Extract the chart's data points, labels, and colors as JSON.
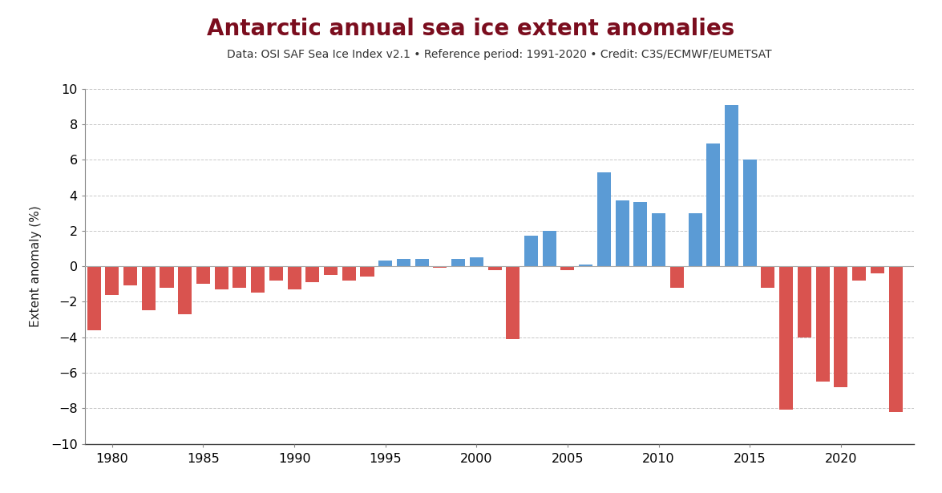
{
  "title": "Antarctic annual sea ice extent anomalies",
  "subtitle": "Data: OSI SAF Sea Ice Index v2.1 • Reference period: 1991-2020 • Credit: C3S/ECMWF/EUMETSAT",
  "ylabel": "Extent anomaly (%)",
  "xlim": [
    1978.5,
    2024.0
  ],
  "ylim": [
    -10,
    10
  ],
  "yticks": [
    -10,
    -8,
    -6,
    -4,
    -2,
    0,
    2,
    4,
    6,
    8,
    10
  ],
  "xticks": [
    1980,
    1985,
    1990,
    1995,
    2000,
    2005,
    2010,
    2015,
    2020
  ],
  "bar_color_positive": "#5b9bd5",
  "bar_color_negative": "#d9534f",
  "background_color": "#ffffff",
  "grid_color": "#c8c8c8",
  "title_color": "#7b0d1e",
  "subtitle_color": "#333333",
  "years": [
    1979,
    1980,
    1981,
    1982,
    1983,
    1984,
    1985,
    1986,
    1987,
    1988,
    1989,
    1990,
    1991,
    1992,
    1993,
    1994,
    1995,
    1996,
    1997,
    1998,
    1999,
    2000,
    2001,
    2002,
    2003,
    2004,
    2005,
    2006,
    2007,
    2008,
    2009,
    2010,
    2011,
    2012,
    2013,
    2014,
    2015,
    2016,
    2017,
    2018,
    2019,
    2020,
    2021,
    2022,
    2023
  ],
  "values": [
    -3.6,
    -1.6,
    -1.1,
    -2.5,
    -1.2,
    -2.7,
    -1.0,
    -1.3,
    -1.2,
    -1.5,
    -0.8,
    -1.3,
    -0.9,
    -0.5,
    -0.8,
    -0.6,
    0.3,
    0.4,
    0.4,
    -0.1,
    0.4,
    0.5,
    -0.2,
    -4.1,
    1.7,
    2.0,
    -0.2,
    0.1,
    5.3,
    3.7,
    3.6,
    3.0,
    -1.2,
    3.0,
    6.9,
    9.1,
    6.0,
    -1.2,
    -8.1,
    -4.0,
    -6.5,
    -6.8,
    -0.8,
    -0.4,
    -8.2
  ]
}
